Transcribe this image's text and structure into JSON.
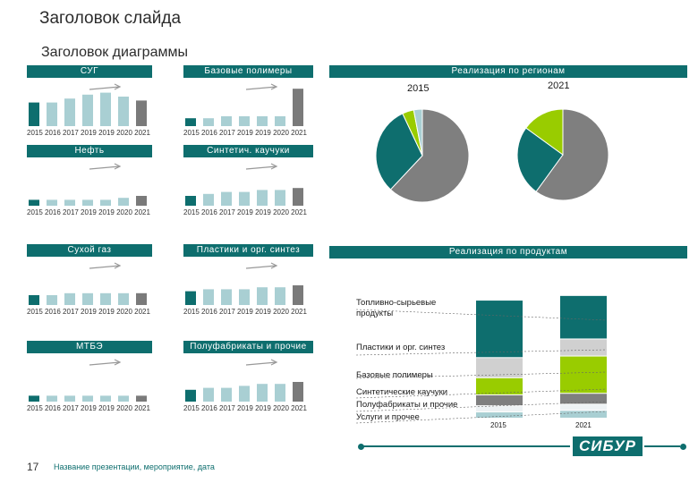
{
  "slide": {
    "title": "Заголовок слайда",
    "chart_title": "Заголовок диаграммы"
  },
  "colors": {
    "accent": "#0e6e6e",
    "light_bar": "#a9cfd3",
    "last_bar": "#7a7a7a",
    "lime": "#99cc00",
    "gray": "#7f7f7f",
    "lightgray": "#d0d0d0",
    "lightblue": "#a9cfd3"
  },
  "chart_data": [
    {
      "type": "bar",
      "title": "СУГ",
      "categories": [
        "2015",
        "2016",
        "2017",
        "2019",
        "2019",
        "2020",
        "2021"
      ],
      "values": [
        12,
        12,
        14,
        16,
        17,
        15,
        13
      ],
      "years_label": "2015 2016 2017 2019 2019 2020 2021"
    },
    {
      "type": "bar",
      "title": "Базовые полимеры",
      "categories": [
        "2015",
        "2016",
        "2017",
        "2019",
        "2019",
        "2020",
        "2021"
      ],
      "values": [
        4,
        4,
        5,
        5,
        5,
        5,
        19
      ],
      "years_label": "2015 2016 2017 2019 2019 2020 2021"
    },
    {
      "type": "bar",
      "title": "Нефть",
      "categories": [
        "2015",
        "2016",
        "2017",
        "2019",
        "2019",
        "2020",
        "2021"
      ],
      "values": [
        3,
        3,
        3,
        3,
        3,
        4,
        5
      ],
      "years_label": "2015 2016 2017 2019 2019 2020 2021"
    },
    {
      "type": "bar",
      "title": "Синтетич. каучуки",
      "categories": [
        "2015",
        "2016",
        "2017",
        "2019",
        "2019",
        "2020",
        "2021"
      ],
      "values": [
        5,
        6,
        7,
        7,
        8,
        8,
        9
      ],
      "years_label": "2015 2016 2017 2019 2019 2020 2021"
    },
    {
      "type": "bar",
      "title": "Сухой газ",
      "categories": [
        "2015",
        "2016",
        "2017",
        "2019",
        "2019",
        "2020",
        "2021"
      ],
      "values": [
        5,
        5,
        6,
        6,
        6,
        6,
        6
      ],
      "years_label": "2015 2016 2017 2019 2019 2020 2021"
    },
    {
      "type": "bar",
      "title": "Пластики и орг. синтез",
      "categories": [
        "2015",
        "2016",
        "2017",
        "2019",
        "2019",
        "2020",
        "2021"
      ],
      "values": [
        7,
        8,
        8,
        8,
        9,
        9,
        10
      ],
      "years_label": "2015 2016 2017 2019 2019 2020 2021"
    },
    {
      "type": "bar",
      "title": "МТБЭ",
      "categories": [
        "2015",
        "2016",
        "2017",
        "2019",
        "2019",
        "2020",
        "2021"
      ],
      "values": [
        3,
        3,
        3,
        3,
        3,
        3,
        3
      ],
      "years_label": "2015 2016 2017 2019 2019 2020 2021"
    },
    {
      "type": "bar",
      "title": "Полуфабрикаты и прочие",
      "categories": [
        "2015",
        "2016",
        "2017",
        "2019",
        "2019",
        "2020",
        "2021"
      ],
      "values": [
        6,
        7,
        7,
        8,
        9,
        9,
        10
      ],
      "years_label": "2015 2016 2017 2019 2019 2020 2021"
    },
    {
      "type": "pie",
      "title": "Реализация по регионам",
      "pies": [
        {
          "label": "2015",
          "values": [
            62,
            31,
            4,
            3
          ]
        },
        {
          "label": "2021",
          "values": [
            60,
            25,
            15
          ]
        }
      ]
    },
    {
      "type": "bar",
      "stacked": true,
      "title": "Реализация по продуктам",
      "categories": [
        "2015",
        "2021"
      ],
      "series": [
        {
          "name": "Услуги и прочее",
          "values": [
            4,
            5
          ]
        },
        {
          "name": "Полуфабрикаты и прочие",
          "values": [
            4,
            4
          ]
        },
        {
          "name": "Синтетические каучуки",
          "values": [
            7,
            7
          ]
        },
        {
          "name": "Базовые полимеры",
          "values": [
            11,
            24
          ]
        },
        {
          "name": "Пластики и орг. синтез",
          "values": [
            13,
            11
          ]
        },
        {
          "name": "Топливно-сырьевые продукты",
          "values": [
            37,
            28
          ]
        }
      ],
      "legend": [
        "Топливно-сырьевые продукты",
        "Пластики и орг. синтез",
        "Базовые полимеры",
        "Синтетические каучуки",
        "Полуфабрикаты и прочие",
        "Услуги и прочее"
      ]
    }
  ],
  "footer": {
    "page_number": "17",
    "text": "Название презентации, мероприятие, дата",
    "logo": "СИБУР"
  }
}
